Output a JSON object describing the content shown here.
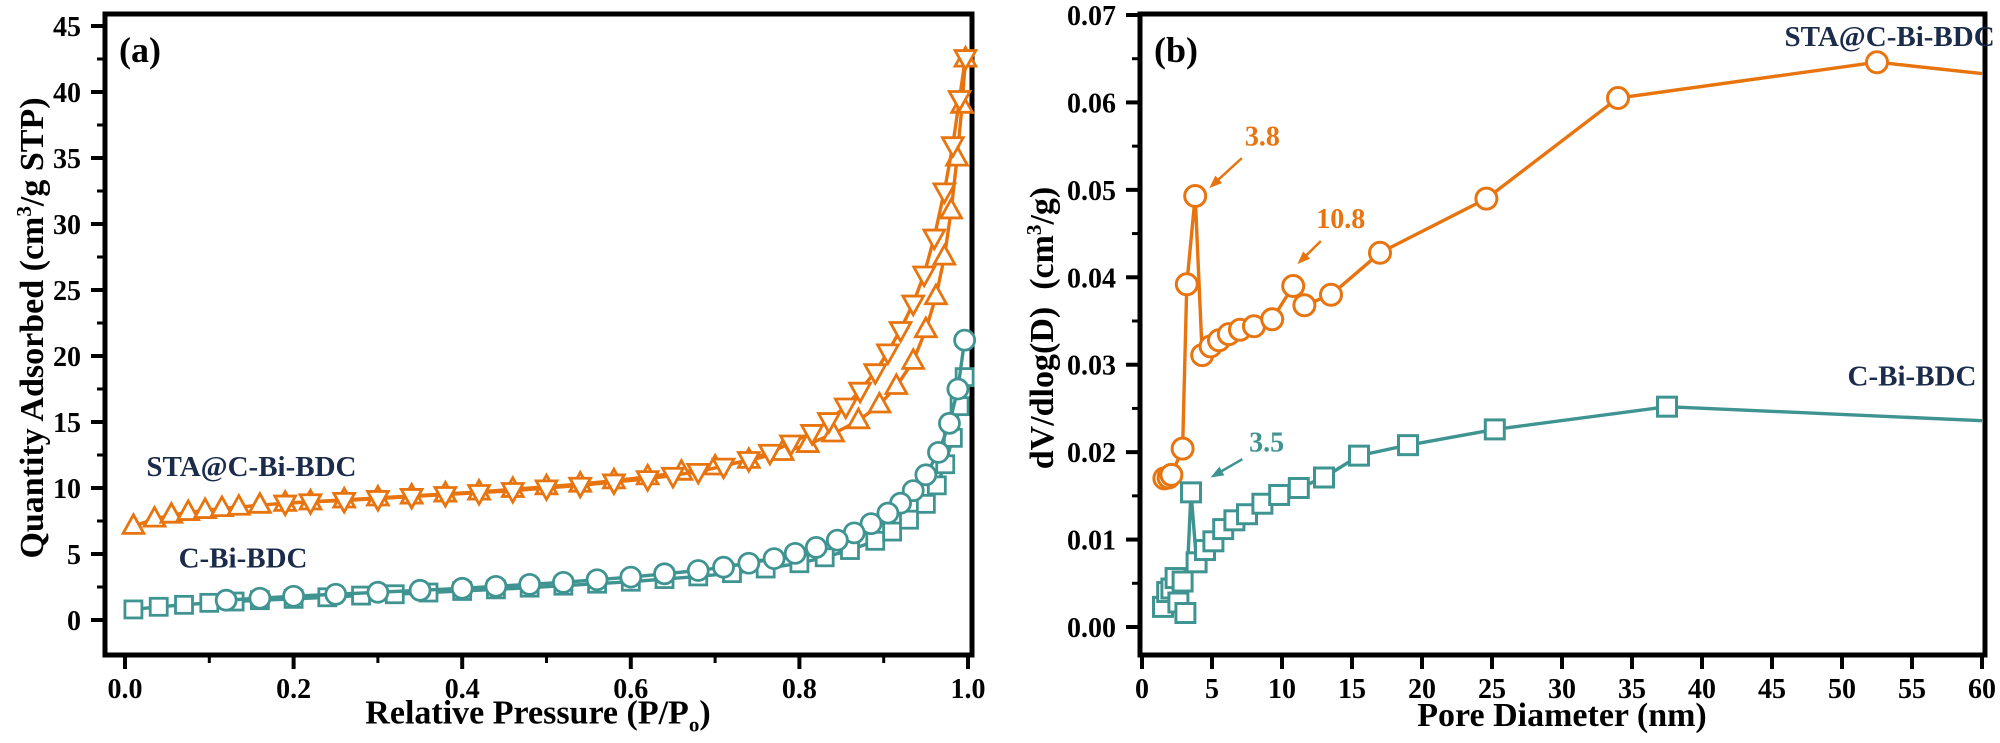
{
  "palette": {
    "orange": "#e7740e",
    "teal": "#3f9492",
    "series_label_navy": "#1b2b4a",
    "axis_text": "#000000"
  },
  "chart_data": [
    {
      "id": "a",
      "type": "line",
      "tag": "(a)",
      "xlabel": {
        "pre": "Relative Pressure (P/P",
        "sub": "o",
        "post": ")"
      },
      "ylabel": {
        "pre": "Quantity Adsorbed (cm",
        "sup": "3",
        "post": "/g STP)"
      },
      "xlim": [
        0,
        1.0
      ],
      "ylim": [
        0,
        45
      ],
      "grid": false,
      "legend_position": "in-plot-text-labels",
      "x_ticks": {
        "major": [
          0,
          0.2,
          0.4,
          0.6,
          0.8,
          1.0
        ],
        "labels": [
          "0.0",
          "0.2",
          "0.4",
          "0.6",
          "0.8",
          "1.0"
        ],
        "minor": [
          0.1,
          0.3,
          0.5,
          0.7,
          0.9
        ]
      },
      "y_ticks": {
        "major": [
          0,
          5,
          10,
          15,
          20,
          25,
          30,
          35,
          40,
          45
        ],
        "labels": [
          "0",
          "5",
          "10",
          "15",
          "20",
          "25",
          "30",
          "35",
          "40",
          "45"
        ],
        "minor": [
          2.5,
          7.5,
          12.5,
          17.5,
          22.5,
          27.5,
          32.5,
          37.5,
          42.5
        ]
      },
      "series": [
        {
          "name": "STA@C-Bi-BDC adsorption",
          "marker": "triangle-up",
          "color": "#e7740e",
          "points": [
            [
              0.01,
              7.1
            ],
            [
              0.035,
              7.65
            ],
            [
              0.055,
              7.95
            ],
            [
              0.075,
              8.15
            ],
            [
              0.095,
              8.3
            ],
            [
              0.115,
              8.45
            ],
            [
              0.135,
              8.55
            ],
            [
              0.16,
              8.7
            ],
            [
              0.19,
              8.85
            ],
            [
              0.22,
              8.95
            ],
            [
              0.26,
              9.1
            ],
            [
              0.3,
              9.25
            ],
            [
              0.34,
              9.4
            ],
            [
              0.38,
              9.55
            ],
            [
              0.42,
              9.7
            ],
            [
              0.46,
              9.9
            ],
            [
              0.5,
              10.1
            ],
            [
              0.54,
              10.3
            ],
            [
              0.58,
              10.55
            ],
            [
              0.62,
              10.85
            ],
            [
              0.66,
              11.2
            ],
            [
              0.7,
              11.6
            ],
            [
              0.74,
              12.1
            ],
            [
              0.78,
              12.7
            ],
            [
              0.81,
              13.3
            ],
            [
              0.84,
              14.1
            ],
            [
              0.87,
              15.1
            ],
            [
              0.895,
              16.3
            ],
            [
              0.915,
              17.7
            ],
            [
              0.935,
              19.6
            ],
            [
              0.95,
              22.0
            ],
            [
              0.962,
              24.5
            ],
            [
              0.972,
              27.5
            ],
            [
              0.98,
              31.0
            ],
            [
              0.987,
              35.0
            ],
            [
              0.993,
              39.0
            ],
            [
              0.997,
              42.5
            ]
          ]
        },
        {
          "name": "STA@C-Bi-BDC desorption",
          "marker": "triangle-down",
          "color": "#e7740e",
          "points": [
            [
              0.997,
              42.6
            ],
            [
              0.99,
              39.5
            ],
            [
              0.982,
              36.0
            ],
            [
              0.972,
              32.5
            ],
            [
              0.96,
              29.0
            ],
            [
              0.948,
              26.2
            ],
            [
              0.935,
              24.0
            ],
            [
              0.92,
              22.0
            ],
            [
              0.905,
              20.3
            ],
            [
              0.89,
              18.8
            ],
            [
              0.872,
              17.4
            ],
            [
              0.855,
              16.2
            ],
            [
              0.835,
              15.1
            ],
            [
              0.815,
              14.2
            ],
            [
              0.79,
              13.4
            ],
            [
              0.765,
              12.7
            ],
            [
              0.74,
              12.15
            ],
            [
              0.71,
              11.65
            ],
            [
              0.68,
              11.25
            ],
            [
              0.65,
              10.95
            ],
            [
              0.62,
              10.7
            ],
            [
              0.58,
              10.45
            ],
            [
              0.54,
              10.2
            ],
            [
              0.5,
              10.0
            ],
            [
              0.46,
              9.8
            ],
            [
              0.42,
              9.65
            ],
            [
              0.38,
              9.5
            ],
            [
              0.34,
              9.35
            ],
            [
              0.3,
              9.2
            ],
            [
              0.26,
              9.05
            ],
            [
              0.22,
              8.95
            ],
            [
              0.19,
              8.85
            ]
          ]
        },
        {
          "name": "C-Bi-BDC adsorption",
          "marker": "square",
          "color": "#3f9492",
          "points": [
            [
              0.01,
              0.8
            ],
            [
              0.04,
              1.0
            ],
            [
              0.07,
              1.15
            ],
            [
              0.1,
              1.3
            ],
            [
              0.13,
              1.4
            ],
            [
              0.16,
              1.5
            ],
            [
              0.2,
              1.6
            ],
            [
              0.24,
              1.72
            ],
            [
              0.28,
              1.85
            ],
            [
              0.32,
              1.95
            ],
            [
              0.36,
              2.08
            ],
            [
              0.4,
              2.2
            ],
            [
              0.44,
              2.32
            ],
            [
              0.48,
              2.45
            ],
            [
              0.52,
              2.6
            ],
            [
              0.56,
              2.75
            ],
            [
              0.6,
              2.9
            ],
            [
              0.64,
              3.1
            ],
            [
              0.68,
              3.3
            ],
            [
              0.72,
              3.55
            ],
            [
              0.76,
              3.9
            ],
            [
              0.8,
              4.3
            ],
            [
              0.83,
              4.75
            ],
            [
              0.86,
              5.3
            ],
            [
              0.89,
              6.0
            ],
            [
              0.91,
              6.7
            ],
            [
              0.93,
              7.6
            ],
            [
              0.95,
              8.8
            ],
            [
              0.963,
              10.2
            ],
            [
              0.973,
              11.8
            ],
            [
              0.982,
              13.8
            ],
            [
              0.99,
              16.2
            ],
            [
              0.996,
              18.4
            ]
          ]
        },
        {
          "name": "C-Bi-BDC desorption",
          "marker": "circle",
          "color": "#3f9492",
          "points": [
            [
              0.996,
              21.2
            ],
            [
              0.988,
              17.5
            ],
            [
              0.978,
              14.9
            ],
            [
              0.965,
              12.7
            ],
            [
              0.95,
              11.0
            ],
            [
              0.935,
              9.8
            ],
            [
              0.92,
              8.85
            ],
            [
              0.905,
              8.1
            ],
            [
              0.885,
              7.3
            ],
            [
              0.865,
              6.6
            ],
            [
              0.845,
              6.05
            ],
            [
              0.82,
              5.5
            ],
            [
              0.795,
              5.05
            ],
            [
              0.77,
              4.65
            ],
            [
              0.74,
              4.3
            ],
            [
              0.71,
              4.0
            ],
            [
              0.68,
              3.75
            ],
            [
              0.64,
              3.5
            ],
            [
              0.6,
              3.25
            ],
            [
              0.56,
              3.05
            ],
            [
              0.52,
              2.85
            ],
            [
              0.48,
              2.7
            ],
            [
              0.44,
              2.55
            ],
            [
              0.4,
              2.4
            ],
            [
              0.35,
              2.25
            ],
            [
              0.3,
              2.1
            ],
            [
              0.25,
              1.95
            ],
            [
              0.2,
              1.8
            ],
            [
              0.16,
              1.65
            ],
            [
              0.12,
              1.5
            ]
          ]
        }
      ],
      "labels": [
        {
          "text": "STA@C-Bi-BDC",
          "x": 0.15,
          "y": 11.4,
          "color": "#1b2b4a"
        },
        {
          "text": "C-Bi-BDC",
          "x": 0.14,
          "y": 4.5,
          "color": "#1b2b4a"
        }
      ],
      "annotations": []
    },
    {
      "id": "b",
      "type": "line",
      "tag": "(b)",
      "xlabel": {
        "pre": "Pore Diameter (nm)",
        "sub": "",
        "post": ""
      },
      "ylabel": {
        "pre": "dV/dlog(D)  (cm",
        "sup": "3",
        "post": "/g)"
      },
      "xlim": [
        0,
        60
      ],
      "ylim": [
        0,
        0.07
      ],
      "grid": false,
      "legend_position": "in-plot-text-labels",
      "x_ticks": {
        "major": [
          0,
          5,
          10,
          15,
          20,
          25,
          30,
          35,
          40,
          45,
          50,
          55,
          60
        ],
        "labels": [
          "0",
          "5",
          "10",
          "15",
          "20",
          "25",
          "30",
          "35",
          "40",
          "45",
          "50",
          "55",
          "60"
        ],
        "minor": []
      },
      "y_ticks": {
        "major": [
          0,
          0.01,
          0.02,
          0.03,
          0.04,
          0.05,
          0.06,
          0.07
        ],
        "labels": [
          "0.00",
          "0.01",
          "0.02",
          "0.03",
          "0.04",
          "0.05",
          "0.06",
          "0.07"
        ],
        "minor": [
          0.005,
          0.015,
          0.025,
          0.035,
          0.045,
          0.055,
          0.065
        ]
      },
      "series": [
        {
          "name": "STA@C-Bi-BDC",
          "marker": "circle",
          "color": "#e7740e",
          "points": [
            [
              1.6,
              0.017
            ],
            [
              1.9,
              0.0171
            ],
            [
              2.1,
              0.0174
            ],
            [
              2.9,
              0.0204
            ],
            [
              3.2,
              0.0392
            ],
            [
              3.8,
              0.0493
            ],
            [
              4.3,
              0.0311
            ],
            [
              4.9,
              0.0321
            ],
            [
              5.5,
              0.0328
            ],
            [
              6.2,
              0.0335
            ],
            [
              7.0,
              0.034
            ],
            [
              8.0,
              0.0344
            ],
            [
              9.3,
              0.0352
            ],
            [
              10.8,
              0.039
            ],
            [
              11.6,
              0.0368
            ],
            [
              13.5,
              0.038
            ],
            [
              17.0,
              0.0428
            ],
            [
              24.6,
              0.049
            ],
            [
              34.0,
              0.0605
            ],
            [
              52.5,
              0.0646
            ]
          ],
          "line_end": [
            60,
            0.0633
          ]
        },
        {
          "name": "C-Bi-BDC",
          "marker": "square",
          "color": "#3f9492",
          "points": [
            [
              1.5,
              0.0023
            ],
            [
              1.8,
              0.004
            ],
            [
              2.1,
              0.0044
            ],
            [
              2.4,
              0.0056
            ],
            [
              2.6,
              0.0028
            ],
            [
              2.9,
              0.0052
            ],
            [
              3.1,
              0.0016
            ],
            [
              3.5,
              0.0154
            ],
            [
              3.9,
              0.0074
            ],
            [
              4.5,
              0.0088
            ],
            [
              5.1,
              0.0098
            ],
            [
              5.8,
              0.0112
            ],
            [
              6.6,
              0.0122
            ],
            [
              7.5,
              0.0129
            ],
            [
              8.6,
              0.0141
            ],
            [
              9.8,
              0.0151
            ],
            [
              11.2,
              0.0159
            ],
            [
              13.0,
              0.0171
            ],
            [
              15.5,
              0.0196
            ],
            [
              19.0,
              0.0208
            ],
            [
              25.2,
              0.0226
            ],
            [
              37.5,
              0.0252
            ]
          ],
          "line_end": [
            60,
            0.0236
          ]
        }
      ],
      "labels": [
        {
          "text": "STA@C-Bi-BDC",
          "x": 53.4,
          "y": 0.0672,
          "color": "#1b2b4a"
        },
        {
          "text": "C-Bi-BDC",
          "x": 55.0,
          "y": 0.0284,
          "color": "#1b2b4a"
        }
      ],
      "annotations": [
        {
          "text": "3.8",
          "color": "#e7740e",
          "label_xy": [
            8.6,
            0.0558
          ],
          "tip_xy": [
            4.8,
            0.0502
          ]
        },
        {
          "text": "10.8",
          "color": "#e7740e",
          "label_xy": [
            14.2,
            0.0464
          ],
          "tip_xy": [
            11.1,
            0.0415
          ]
        },
        {
          "text": "3.5",
          "color": "#3f9492",
          "label_xy": [
            8.9,
            0.0208
          ],
          "tip_xy": [
            4.9,
            0.0171
          ]
        }
      ]
    }
  ]
}
